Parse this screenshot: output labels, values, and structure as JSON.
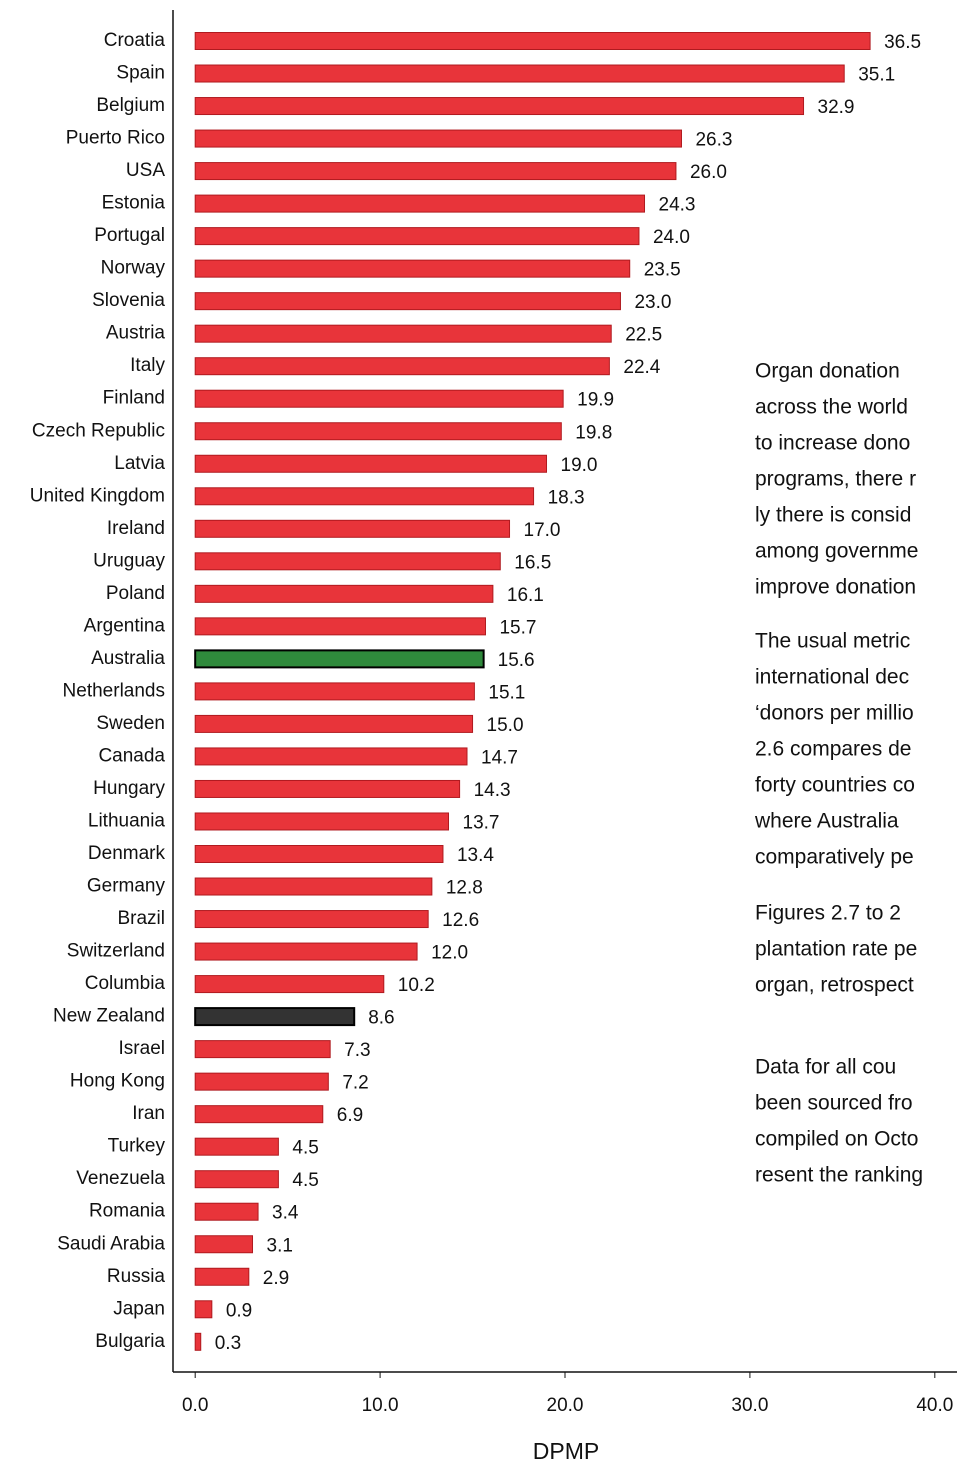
{
  "chart_data": {
    "type": "bar",
    "orientation": "horizontal",
    "xlabel": "DPMP",
    "categories": [
      "Croatia",
      "Spain",
      "Belgium",
      "Puerto Rico",
      "USA",
      "Estonia",
      "Portugal",
      "Norway",
      "Slovenia",
      "Austria",
      "Italy",
      "Finland",
      "Czech Republic",
      "Latvia",
      "United Kingdom",
      "Ireland",
      "Uruguay",
      "Poland",
      "Argentina",
      "Australia",
      "Netherlands",
      "Sweden",
      "Canada",
      "Hungary",
      "Lithuania",
      "Denmark",
      "Germany",
      "Brazil",
      "Switzerland",
      "Columbia",
      "New Zealand",
      "Israel",
      "Hong Kong",
      "Iran",
      "Turkey",
      "Venezuela",
      "Romania",
      "Saudi Arabia",
      "Russia",
      "Japan",
      "Bulgaria"
    ],
    "values": [
      36.5,
      35.1,
      32.9,
      26.3,
      26.0,
      24.3,
      24.0,
      23.5,
      23.0,
      22.5,
      22.4,
      19.9,
      19.8,
      19.0,
      18.3,
      17.0,
      16.5,
      16.1,
      15.7,
      15.6,
      15.1,
      15.0,
      14.7,
      14.3,
      13.7,
      13.4,
      12.8,
      12.6,
      12.0,
      10.2,
      8.6,
      7.3,
      7.2,
      6.9,
      4.5,
      4.5,
      3.4,
      3.1,
      2.9,
      0.9,
      0.3
    ],
    "value_labels": [
      "36.5",
      "35.1",
      "32.9",
      "26.3",
      "26.0",
      "24.3",
      "24.0",
      "23.5",
      "23.0",
      "22.5",
      "22.4",
      "19.9",
      "19.8",
      "19.0",
      "18.3",
      "17.0",
      "16.5",
      "16.1",
      "15.7",
      "15.6",
      "15.1",
      "15.0",
      "14.7",
      "14.3",
      "13.7",
      "13.4",
      "12.8",
      "12.6",
      "12.0",
      "10.2",
      "8.6",
      "7.3",
      "7.2",
      "6.9",
      "4.5",
      "4.5",
      "3.4",
      "3.1",
      "2.9",
      "0.9",
      "0.3"
    ],
    "color": "#e8343a",
    "highlight_colors": {
      "Australia": "#2f8a3c",
      "New Zealand": "#333333"
    },
    "xlim": [
      -1.2,
      41.2
    ],
    "xticks": [
      {
        "value": 0,
        "label": "0.0"
      },
      {
        "value": 10,
        "label": "10.0"
      },
      {
        "value": 20,
        "label": "20.0"
      },
      {
        "value": 30,
        "label": "30.0"
      },
      {
        "value": 40,
        "label": "40.0"
      }
    ],
    "grid": false
  },
  "side_text": [
    [
      "Organ donation",
      "across the world",
      "to increase dono",
      "programs, there r",
      "ly there is consid",
      "among governme",
      "improve donation"
    ],
    [
      "The usual metric",
      "international dec",
      "‘donors per millio",
      "2.6 compares de",
      "forty countries co",
      "where Australia",
      "comparatively pe"
    ],
    [
      "Figures 2.7 to 2",
      "plantation rate pe",
      "organ, retrospect"
    ],
    [
      "Data for all cou",
      "been sourced fro",
      "compiled on Octo",
      "resent the ranking"
    ]
  ]
}
